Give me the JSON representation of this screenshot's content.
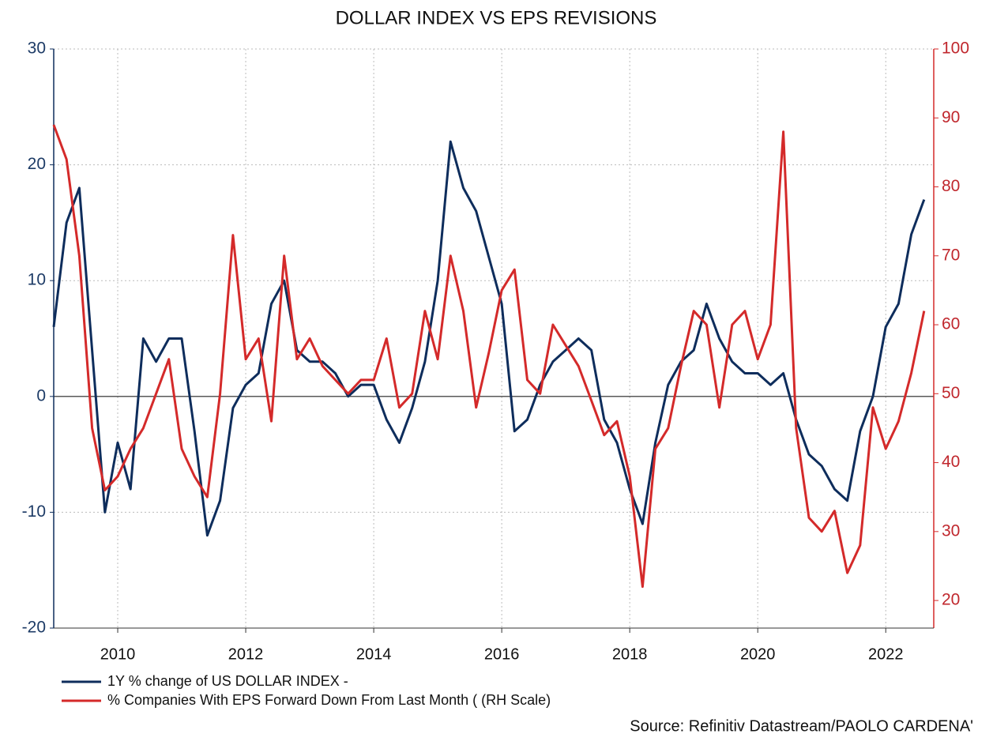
{
  "chart_data": {
    "type": "line",
    "title": "DOLLAR INDEX VS EPS REVISIONS",
    "source": "Source: Refinitiv Datastream/PAOLO CARDENA'",
    "x": [
      2009.0,
      2009.2,
      2009.4,
      2009.6,
      2009.8,
      2010.0,
      2010.2,
      2010.4,
      2010.6,
      2010.8,
      2011.0,
      2011.2,
      2011.4,
      2011.6,
      2011.8,
      2012.0,
      2012.2,
      2012.4,
      2012.6,
      2012.8,
      2013.0,
      2013.2,
      2013.4,
      2013.6,
      2013.8,
      2014.0,
      2014.2,
      2014.4,
      2014.6,
      2014.8,
      2015.0,
      2015.2,
      2015.4,
      2015.6,
      2015.8,
      2016.0,
      2016.2,
      2016.4,
      2016.6,
      2016.8,
      2017.0,
      2017.2,
      2017.4,
      2017.6,
      2017.8,
      2018.0,
      2018.2,
      2018.4,
      2018.6,
      2018.8,
      2019.0,
      2019.2,
      2019.4,
      2019.6,
      2019.8,
      2020.0,
      2020.2,
      2020.4,
      2020.6,
      2020.8,
      2021.0,
      2021.2,
      2021.4,
      2021.6,
      2021.8,
      2022.0,
      2022.2,
      2022.4,
      2022.6
    ],
    "series": [
      {
        "name": "1Y % change of US DOLLAR INDEX -",
        "color": "#0e2d5c",
        "axis": "y",
        "values": [
          6,
          15,
          18,
          4,
          -10,
          -4,
          -8,
          5,
          3,
          5,
          5,
          -3,
          -12,
          -9,
          -1,
          1,
          2,
          8,
          10,
          4,
          3,
          3,
          2,
          0,
          1,
          1,
          -2,
          -4,
          -1,
          3,
          10,
          22,
          18,
          16,
          12,
          8,
          -3,
          -2,
          1,
          3,
          4,
          5,
          4,
          -2,
          -4,
          -8,
          -11,
          -4,
          1,
          3,
          4,
          8,
          5,
          3,
          2,
          2,
          1,
          2,
          -2,
          -5,
          -6,
          -8,
          -9,
          -3,
          0,
          6,
          8,
          14,
          17
        ]
      },
      {
        "name": "% Companies With EPS Forward Down From Last Month ( (RH Scale)",
        "color": "#d42a2a",
        "axis": "y2",
        "values": [
          89,
          84,
          70,
          45,
          36,
          38,
          42,
          45,
          50,
          55,
          42,
          38,
          35,
          50,
          73,
          55,
          58,
          46,
          70,
          55,
          58,
          54,
          52,
          50,
          52,
          52,
          58,
          48,
          50,
          62,
          55,
          70,
          62,
          48,
          56,
          65,
          68,
          52,
          50,
          60,
          57,
          54,
          49,
          44,
          46,
          38,
          22,
          42,
          45,
          54,
          62,
          60,
          48,
          60,
          62,
          55,
          60,
          88,
          45,
          32,
          30,
          33,
          24,
          28,
          48,
          42,
          46,
          53,
          62
        ]
      }
    ],
    "xlim": [
      2009.0,
      2022.75
    ],
    "xticks": [
      2010,
      2012,
      2014,
      2016,
      2018,
      2020,
      2022
    ],
    "ylim": [
      -20,
      30
    ],
    "yticks": [
      -20,
      -10,
      0,
      10,
      20,
      30
    ],
    "y2lim": [
      16,
      100
    ],
    "y2ticks": [
      20,
      30,
      40,
      50,
      60,
      70,
      80,
      90,
      100
    ],
    "grid": true,
    "legend": "bottom-left"
  }
}
